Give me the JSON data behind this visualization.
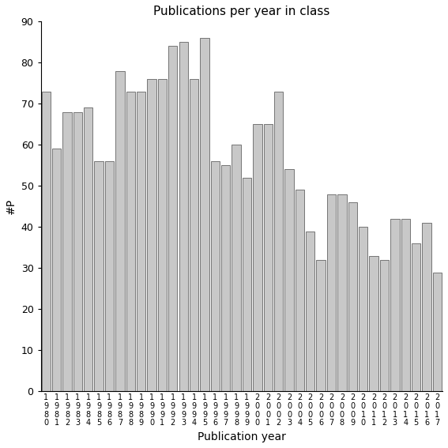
{
  "title": "Publications per year in class",
  "xlabel": "Publication year",
  "ylabel": "#P",
  "ylim": [
    0,
    90
  ],
  "yticks": [
    0,
    10,
    20,
    30,
    40,
    50,
    60,
    70,
    80,
    90
  ],
  "bar_color": "#c8c8c8",
  "bar_edgecolor": "#646464",
  "categories": [
    "1980",
    "1981",
    "1982",
    "1983",
    "1984",
    "1985",
    "1986",
    "1987",
    "1988",
    "1989",
    "1990",
    "1991",
    "1992",
    "1993",
    "1994",
    "1995",
    "1996",
    "1997",
    "1998",
    "1999",
    "2000",
    "2001",
    "2002",
    "2003",
    "2004",
    "2005",
    "2006",
    "2007",
    "2008",
    "2009",
    "2010",
    "2011",
    "2012",
    "2013",
    "2014",
    "2015",
    "2016",
    "2017"
  ],
  "values": [
    73,
    59,
    68,
    68,
    69,
    56,
    56,
    78,
    73,
    73,
    76,
    76,
    84,
    85,
    76,
    86,
    56,
    55,
    60,
    52,
    65,
    65,
    73,
    54,
    49,
    39,
    32,
    48,
    48,
    46,
    40,
    33,
    32,
    42,
    42,
    36,
    41,
    29
  ],
  "background_color": "#ffffff",
  "title_fontsize": 11,
  "axis_fontsize": 9,
  "label_fontsize": 10,
  "tick_label_fontsize": 7
}
